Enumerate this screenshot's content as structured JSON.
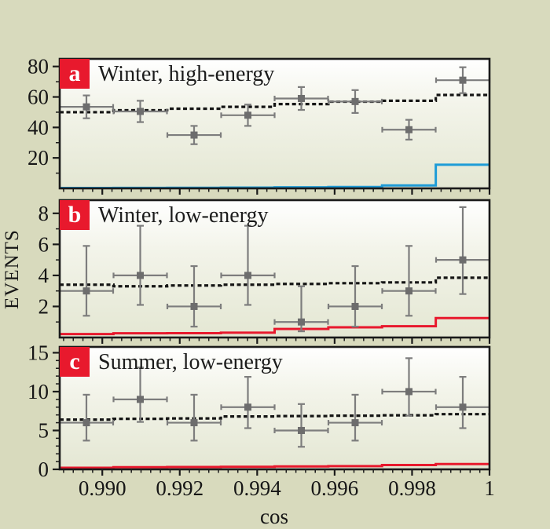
{
  "figure": {
    "background": "#d8dabd",
    "panel_gradient_top": "#ffffff",
    "panel_gradient_mid": "#f3f4ea",
    "panel_gradient_bottom": "#e4e7d3",
    "axis_color": "#1a1a1a",
    "marker_color": "#6d6d6d",
    "errorbar_color": "#7d7d7d",
    "dashed_color": "#151515",
    "badge_background": "#e8192d",
    "badge_text_color": "#ffffff"
  },
  "labels": {
    "ylabel": "EVENTS",
    "xlabel": "cos"
  },
  "chart_data": {
    "type": "scatter",
    "description": "Three stacked panels of event counts vs cosine: gray data points with statistical error bars, black dashed expected-background step line, and a colored expected-signal step histogram.",
    "xlabel": "cos",
    "ylabel": "EVENTS",
    "grid": false,
    "legend": false,
    "x_axis": {
      "min": 0.9889,
      "max": 1.0,
      "major_ticks": [
        0.99,
        0.992,
        0.994,
        0.996,
        0.998,
        1.0
      ],
      "major_tick_labels": [
        "0.990",
        "0.992",
        "0.994",
        "0.996",
        "0.998",
        "1"
      ],
      "minor_tick_step": 0.00025
    },
    "bin_centers": [
      0.98959,
      0.99098,
      0.99237,
      0.99376,
      0.99514,
      0.99653,
      0.99792,
      0.99931
    ],
    "bin_half_width": 0.00069,
    "panels": [
      {
        "label": "a",
        "title": "Winter, high-energy",
        "ylim": [
          0,
          85
        ],
        "major_yticks": [
          20,
          40,
          60,
          80
        ],
        "minor_yticks": [
          10,
          30,
          50,
          70
        ],
        "values": [
          53.5,
          50.5,
          35,
          48,
          59,
          57,
          38.5,
          71
        ],
        "errors_plus": [
          7.5,
          7,
          6,
          7,
          7.5,
          7.5,
          6.5,
          8.5
        ],
        "errors_minus": [
          7.5,
          7,
          6,
          7,
          7.5,
          7.5,
          6.5,
          8.5
        ],
        "dashed_steps": [
          50,
          51.3,
          52.3,
          53.5,
          55.3,
          56.9,
          57.5,
          61.3
        ],
        "signal_steps": [
          0.25,
          0.3,
          0.4,
          0.5,
          0.7,
          0.9,
          1.9,
          15.5
        ],
        "signal_color": "#1e9cd7"
      },
      {
        "label": "b",
        "title": "Winter, low-energy",
        "ylim": [
          0,
          8.85
        ],
        "major_yticks": [
          2,
          4,
          6,
          8
        ],
        "minor_yticks": [
          1,
          3,
          5,
          7
        ],
        "values": [
          3,
          4,
          2,
          4,
          1,
          2,
          3,
          5
        ],
        "errors_plus": [
          2.9,
          3.2,
          2.6,
          3.2,
          2.3,
          2.6,
          2.9,
          3.4
        ],
        "errors_minus": [
          1.6,
          1.9,
          1.3,
          1.9,
          0.6,
          1.3,
          1.6,
          2.2
        ],
        "dashed_steps": [
          3.4,
          3.3,
          3.35,
          3.4,
          3.45,
          3.5,
          3.55,
          3.85
        ],
        "signal_steps": [
          0.22,
          0.27,
          0.28,
          0.31,
          0.55,
          0.66,
          0.73,
          1.25
        ],
        "signal_color": "#e8192d"
      },
      {
        "label": "c",
        "title": "Summer, low-energy",
        "ylim": [
          0,
          15.75
        ],
        "major_yticks": [
          0,
          5,
          10,
          15
        ],
        "minor_yticks": [
          1,
          2,
          3,
          4,
          6,
          7,
          8,
          9,
          11,
          12,
          13,
          14
        ],
        "values": [
          6,
          9,
          6,
          8,
          5,
          6,
          10,
          8
        ],
        "errors_plus": [
          3.6,
          4.1,
          3.6,
          3.9,
          3.4,
          3.6,
          4.3,
          3.9
        ],
        "errors_minus": [
          2.3,
          2.9,
          2.3,
          2.7,
          2.1,
          2.3,
          3.1,
          2.7
        ],
        "dashed_steps": [
          6.4,
          6.5,
          6.55,
          6.8,
          6.85,
          6.9,
          6.95,
          7.1
        ],
        "signal_steps": [
          0.2,
          0.28,
          0.3,
          0.33,
          0.38,
          0.42,
          0.55,
          0.68
        ],
        "signal_color": "#e8192d"
      }
    ]
  }
}
